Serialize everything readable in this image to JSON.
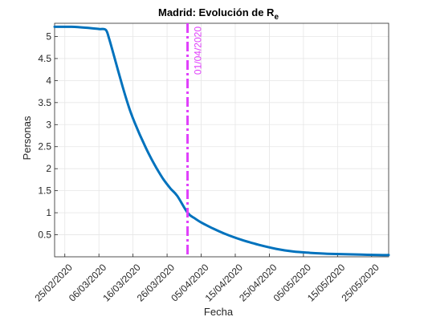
{
  "chart_data": {
    "type": "line",
    "title": "Madrid: Evolución de R",
    "title_subscript": "e",
    "xlabel": "Fecha",
    "ylabel": "Personas",
    "x_ticks": [
      "25/02/2020",
      "06/03/2020",
      "16/03/2020",
      "26/03/2020",
      "05/04/2020",
      "15/04/2020",
      "25/04/2020",
      "05/05/2020",
      "15/05/2020",
      "25/05/2020"
    ],
    "x_range": [
      "2020-02-22",
      "2020-05-30"
    ],
    "y_ticks": [
      "0.5",
      "1",
      "1.5",
      "2",
      "2.5",
      "3",
      "3.5",
      "4",
      "4.5",
      "5"
    ],
    "ylim": [
      0,
      5.3
    ],
    "grid": true,
    "series": [
      {
        "color": "#0072BD",
        "x": [
          "2020-02-22",
          "2020-02-27",
          "2020-03-02",
          "2020-03-06",
          "2020-03-08",
          "2020-03-09",
          "2020-03-11",
          "2020-03-13",
          "2020-03-15",
          "2020-03-17",
          "2020-03-19",
          "2020-03-21",
          "2020-03-23",
          "2020-03-25",
          "2020-03-27",
          "2020-03-29",
          "2020-04-01",
          "2020-04-03",
          "2020-04-05",
          "2020-04-08",
          "2020-04-12",
          "2020-04-17",
          "2020-04-22",
          "2020-04-27",
          "2020-05-02",
          "2020-05-07",
          "2020-05-12",
          "2020-05-17",
          "2020-05-22",
          "2020-05-27",
          "2020-05-30"
        ],
        "y": [
          5.22,
          5.22,
          5.2,
          5.17,
          5.15,
          4.95,
          4.4,
          3.85,
          3.35,
          2.95,
          2.6,
          2.28,
          2.0,
          1.75,
          1.55,
          1.38,
          1.0,
          0.88,
          0.78,
          0.66,
          0.52,
          0.38,
          0.27,
          0.18,
          0.12,
          0.09,
          0.07,
          0.06,
          0.05,
          0.04,
          0.04
        ]
      }
    ],
    "annotations": [
      {
        "type": "vertical-dashed-line",
        "x": "2020-04-01",
        "label": "01/04/2020",
        "color": "#E040FB"
      }
    ]
  }
}
